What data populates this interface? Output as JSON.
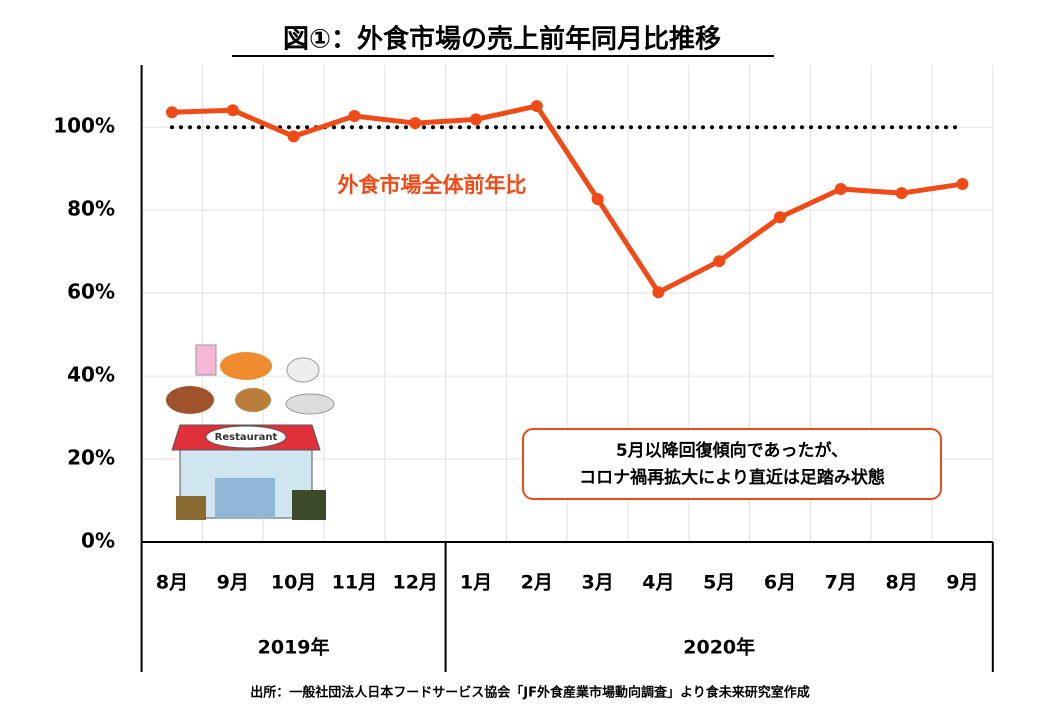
{
  "chart_data": {
    "type": "line",
    "title": "図①：外食市場の売上前年同月比推移",
    "categories": [
      "8月",
      "9月",
      "10月",
      "11月",
      "12月",
      "1月",
      "2月",
      "3月",
      "4月",
      "5月",
      "6月",
      "7月",
      "8月",
      "9月"
    ],
    "groups": [
      {
        "label": "2019年",
        "span": 5
      },
      {
        "label": "2020年",
        "span": 9
      }
    ],
    "series": [
      {
        "name": "外食市場全体前年比",
        "color": "#f04a16",
        "values": [
          103.6,
          104.1,
          97.8,
          102.7,
          101.0,
          101.9,
          105.1,
          82.7,
          60.2,
          67.7,
          78.3,
          85.1,
          84.1,
          86.3
        ]
      }
    ],
    "reference_line": {
      "value": 100,
      "style": "dotted",
      "color": "#000000"
    },
    "ylim": [
      0,
      115
    ],
    "yticks": [
      {
        "value": 0,
        "label": "0%"
      },
      {
        "value": 20,
        "label": "20%"
      },
      {
        "value": 40,
        "label": "40%"
      },
      {
        "value": 60,
        "label": "60%"
      },
      {
        "value": 80,
        "label": "80%"
      },
      {
        "value": 100,
        "label": "100%"
      }
    ],
    "grid": true,
    "annotation": [
      "5月以降回復傾向であったが、",
      "コロナ禍再拡大により直近は足踏み状態"
    ],
    "source": "出所：一般社団法人日本フードサービス協会「JF外食産業市場動向調査」より食未来研究室作成"
  }
}
